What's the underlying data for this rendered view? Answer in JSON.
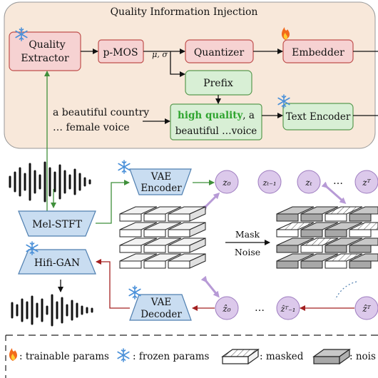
{
  "panel_title": "Quality Information Injection",
  "boxes": {
    "quality_extractor": [
      "Quality",
      "Extractor"
    ],
    "pmos": "p-MOS",
    "mu_sigma": "μ, σ",
    "quantizer": "Quantizer",
    "embedder": "Embedder",
    "prefix": "Prefix",
    "text_encoder": "Text Encoder",
    "prompt_text": [
      "a beautiful country",
      "… female voice"
    ],
    "prefixed_prompt_hq": "high quality",
    "prefixed_prompt_rest_1": ", a",
    "prefixed_prompt_rest_2": "beautiful …voice",
    "mel_stft": "Mel-STFT",
    "hifi_gan": "Hifi-GAN",
    "vae_encoder": [
      "VAE",
      "Encoder"
    ],
    "vae_decoder": [
      "VAE",
      "Decoder"
    ],
    "mask_noise": [
      "Mask",
      "Noise"
    ]
  },
  "latents_top": [
    "z₀",
    "zₜ₋₁",
    "zₜ",
    "…",
    "zᵀ"
  ],
  "latents_bottom": [
    "ẑ₀",
    "…",
    "ẑᵀ₋₁",
    "ẑᵀ"
  ],
  "legend": {
    "trainable": ": trainable params",
    "frozen": ": frozen params",
    "masked": ": masked",
    "noise": ": nois"
  },
  "colors": {
    "panel_fill": "#f8e8da",
    "red_box": "#f6d2d2",
    "red_edge": "#c0504d",
    "green_box": "#d8efd5",
    "green_edge": "#5a9a50",
    "blue_box": "#c9ddf1",
    "blue_edge": "#4f7fb0",
    "purple_circle": "#dcc9eb",
    "green_text": "#2ea42e",
    "red_arrow": "#a32020"
  },
  "icons": [
    "fire-icon",
    "snowflake-icon",
    "waveform-icon"
  ]
}
